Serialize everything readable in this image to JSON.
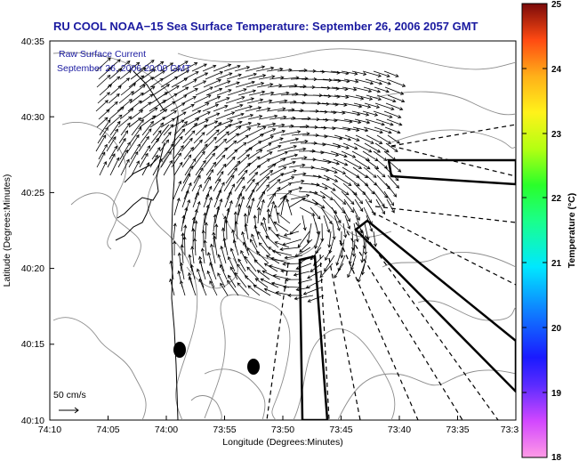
{
  "title": "RU COOL  NOAA−15  Sea Surface Temperature:  September 26, 2006 2057 GMT",
  "annotation": {
    "line1": "Raw Surface Current",
    "line2": "September 26, 2006 20:00 GMT"
  },
  "axes": {
    "xlabel": "Longitude (Degrees:Minutes)",
    "ylabel": "Latitude (Degrees:Minutes)",
    "xticks": [
      "74:10",
      "74:05",
      "74:00",
      "73:55",
      "73:50",
      "73:45",
      "73:40",
      "73:35",
      "73:3"
    ],
    "yticks": [
      "40:35",
      "40:30",
      "40:25",
      "40:20",
      "40:15",
      "40:10"
    ]
  },
  "scale_label": "50 cm/s",
  "colorbar": {
    "label": "Temperature (°C)",
    "ticks": [
      "25",
      "24",
      "23",
      "22",
      "21",
      "20",
      "19",
      "18"
    ],
    "min": 18,
    "max": 25
  },
  "colors": {
    "title": "#1a1aa0",
    "contour": "#8c8c8c",
    "arrow": "#000000",
    "land_outline": "#000000"
  }
}
